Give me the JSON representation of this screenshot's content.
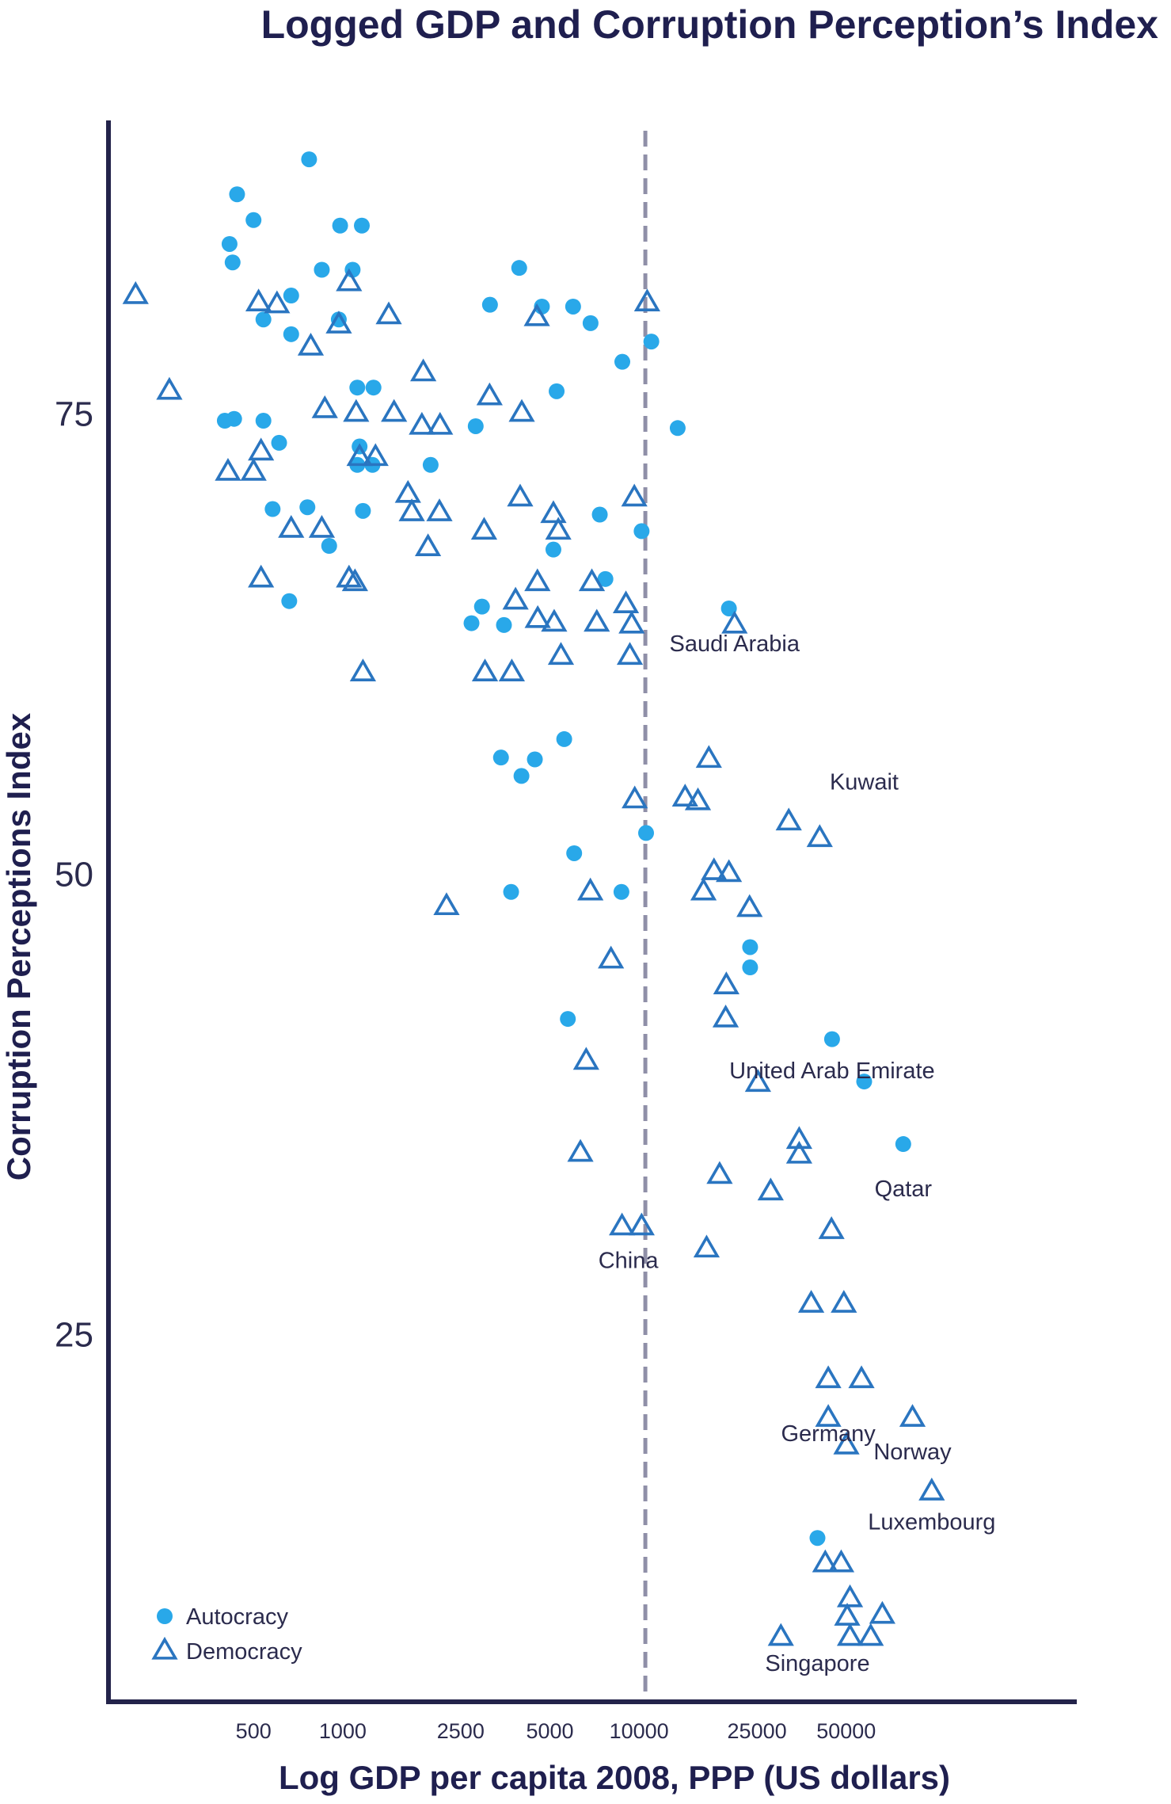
{
  "chart_data": {
    "type": "scatter",
    "title": "Logged GDP and Corruption Perception’s Index",
    "xlabel": "Log GDP per capita 2008, PPP (US dollars)",
    "ylabel": "Corruption Perceptions Index",
    "x_scale": "log",
    "xlim": [
      160,
      300000
    ],
    "ylim": [
      5,
      91
    ],
    "x_ticks": [
      {
        "value": 500,
        "label": "500"
      },
      {
        "value": 1000,
        "label": "1000"
      },
      {
        "value": 2500,
        "label": "2500"
      },
      {
        "value": 5000,
        "label": "5000"
      },
      {
        "value": 10000,
        "label": "10000"
      },
      {
        "value": 25000,
        "label": "25000"
      },
      {
        "value": 50000,
        "label": "50000"
      }
    ],
    "y_ticks": [
      {
        "value": 25,
        "label": "25"
      },
      {
        "value": 50,
        "label": "50"
      },
      {
        "value": 75,
        "label": "75"
      }
    ],
    "reference_line": {
      "axis": "x",
      "value": 10500,
      "style": "dashed"
    },
    "colors": {
      "autocracy": "#29a8e9",
      "democracy": "#2a75c0",
      "axis": "#23234a",
      "text": "#2b2b4d",
      "reference": "#8f8fa8"
    },
    "legend": {
      "position": "bottom-left"
    },
    "series": [
      {
        "name": "Autocracy",
        "marker": "circle",
        "points": [
          [
            770,
            88.8
          ],
          [
            440,
            86.9
          ],
          [
            500,
            85.5
          ],
          [
            980,
            85.2
          ],
          [
            1160,
            85.2
          ],
          [
            415,
            84.2
          ],
          [
            425,
            83.2
          ],
          [
            850,
            82.8
          ],
          [
            1080,
            82.8
          ],
          [
            3940,
            82.9
          ],
          [
            670,
            81.4
          ],
          [
            4700,
            80.8
          ],
          [
            3140,
            80.9
          ],
          [
            5990,
            80.8
          ],
          [
            970,
            80.1
          ],
          [
            540,
            80.1
          ],
          [
            6860,
            79.9
          ],
          [
            670,
            79.3
          ],
          [
            11000,
            78.9
          ],
          [
            8780,
            77.8
          ],
          [
            1120,
            76.4
          ],
          [
            1270,
            76.4
          ],
          [
            5270,
            76.2
          ],
          [
            400,
            74.6
          ],
          [
            430,
            74.7
          ],
          [
            540,
            74.6
          ],
          [
            2810,
            74.3
          ],
          [
            13500,
            74.2
          ],
          [
            610,
            73.4
          ],
          [
            1140,
            73.2
          ],
          [
            1120,
            72.2
          ],
          [
            1260,
            72.2
          ],
          [
            1980,
            72.2
          ],
          [
            1170,
            69.7
          ],
          [
            580,
            69.8
          ],
          [
            760,
            69.9
          ],
          [
            7370,
            69.5
          ],
          [
            10200,
            68.6
          ],
          [
            5140,
            67.6
          ],
          [
            900,
            67.8
          ],
          [
            7700,
            66.0
          ],
          [
            660,
            64.8
          ],
          [
            2950,
            64.5
          ],
          [
            20100,
            64.4
          ],
          [
            2720,
            63.6
          ],
          [
            3500,
            63.5
          ],
          [
            5590,
            57.3
          ],
          [
            3420,
            56.3
          ],
          [
            4450,
            56.2
          ],
          [
            4010,
            55.3
          ],
          [
            10560,
            52.2
          ],
          [
            6040,
            51.1
          ],
          [
            3700,
            49.0
          ],
          [
            8720,
            49.0
          ],
          [
            23700,
            46.0
          ],
          [
            23700,
            44.9
          ],
          [
            5750,
            42.1
          ],
          [
            44800,
            41.0
          ],
          [
            57500,
            38.7
          ],
          [
            77900,
            35.3
          ],
          [
            40000,
            13.9
          ]
        ]
      },
      {
        "name": "Democracy",
        "marker": "triangle",
        "points": [
          [
            200,
            81.4
          ],
          [
            780,
            78.6
          ],
          [
            1430,
            80.3
          ],
          [
            4520,
            80.2
          ],
          [
            600,
            80.9
          ],
          [
            520,
            81.0
          ],
          [
            10650,
            81.0
          ],
          [
            970,
            79.8
          ],
          [
            1050,
            82.1
          ],
          [
            260,
            76.2
          ],
          [
            1870,
            77.2
          ],
          [
            3130,
            75.9
          ],
          [
            4020,
            75.0
          ],
          [
            870,
            75.2
          ],
          [
            1110,
            75.0
          ],
          [
            1490,
            75.0
          ],
          [
            1850,
            74.3
          ],
          [
            2130,
            74.3
          ],
          [
            1140,
            72.6
          ],
          [
            1290,
            72.6
          ],
          [
            530,
            72.9
          ],
          [
            410,
            71.8
          ],
          [
            500,
            71.8
          ],
          [
            1660,
            70.6
          ],
          [
            3970,
            70.4
          ],
          [
            9640,
            70.4
          ],
          [
            1710,
            69.6
          ],
          [
            2120,
            69.6
          ],
          [
            5140,
            69.5
          ],
          [
            670,
            68.7
          ],
          [
            850,
            68.7
          ],
          [
            3000,
            68.6
          ],
          [
            5340,
            68.6
          ],
          [
            1940,
            67.7
          ],
          [
            530,
            66.0
          ],
          [
            1050,
            66.0
          ],
          [
            1100,
            65.8
          ],
          [
            4540,
            65.8
          ],
          [
            6930,
            65.8
          ],
          [
            3830,
            64.8
          ],
          [
            9030,
            64.6
          ],
          [
            4550,
            63.8
          ],
          [
            5170,
            63.6
          ],
          [
            7200,
            63.6
          ],
          [
            9440,
            63.5
          ],
          [
            21000,
            63.5
          ],
          [
            5450,
            61.8
          ],
          [
            9310,
            61.8
          ],
          [
            1170,
            60.9
          ],
          [
            3020,
            60.9
          ],
          [
            3720,
            60.9
          ],
          [
            17200,
            56.2
          ],
          [
            9670,
            54.0
          ],
          [
            14300,
            54.1
          ],
          [
            15800,
            53.9
          ],
          [
            32000,
            52.8
          ],
          [
            40700,
            51.9
          ],
          [
            17900,
            50.1
          ],
          [
            20100,
            50.0
          ],
          [
            16500,
            49.0
          ],
          [
            6850,
            49.0
          ],
          [
            2240,
            48.2
          ],
          [
            23600,
            48.1
          ],
          [
            8040,
            45.3
          ],
          [
            19700,
            43.9
          ],
          [
            19600,
            42.1
          ],
          [
            6630,
            39.8
          ],
          [
            25200,
            38.6
          ],
          [
            34700,
            35.5
          ],
          [
            34700,
            34.7
          ],
          [
            6340,
            34.8
          ],
          [
            18700,
            33.6
          ],
          [
            27800,
            32.7
          ],
          [
            8760,
            30.8
          ],
          [
            10200,
            30.8
          ],
          [
            44600,
            30.6
          ],
          [
            16900,
            29.6
          ],
          [
            38100,
            26.6
          ],
          [
            49100,
            26.6
          ],
          [
            43500,
            22.5
          ],
          [
            56300,
            22.5
          ],
          [
            43500,
            20.4
          ],
          [
            83700,
            20.4
          ],
          [
            50100,
            18.9
          ],
          [
            97200,
            16.4
          ],
          [
            42500,
            12.5
          ],
          [
            48100,
            12.5
          ],
          [
            51500,
            10.6
          ],
          [
            66200,
            9.7
          ],
          [
            50400,
            9.6
          ],
          [
            30100,
            8.5
          ],
          [
            51500,
            8.5
          ],
          [
            60500,
            8.5
          ]
        ]
      }
    ],
    "annotations": [
      {
        "text": "Saudi Arabia",
        "x": 21000,
        "y": 62.5
      },
      {
        "text": "Kuwait",
        "x": 57500,
        "y": 55.0
      },
      {
        "text": "United Arab Emirate",
        "x": 44800,
        "y": 39.3
      },
      {
        "text": "Qatar",
        "x": 77900,
        "y": 32.9
      },
      {
        "text": "China",
        "x": 9200,
        "y": 29.0
      },
      {
        "text": "Germany",
        "x": 43500,
        "y": 19.6
      },
      {
        "text": "Norway",
        "x": 83700,
        "y": 18.6
      },
      {
        "text": "Luxembourg",
        "x": 97200,
        "y": 14.8
      },
      {
        "text": "Singapore",
        "x": 40000,
        "y": 7.1
      }
    ]
  }
}
